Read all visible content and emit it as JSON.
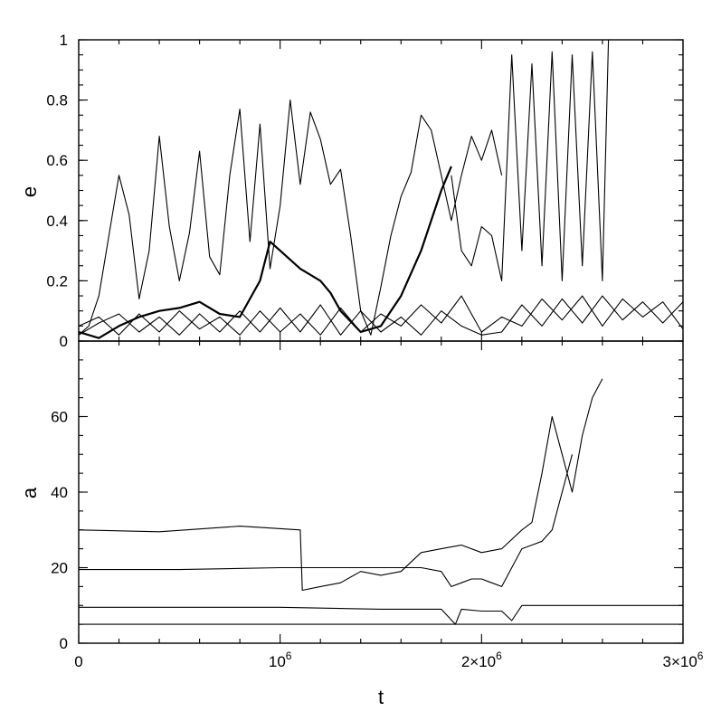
{
  "chart_data": [
    {
      "type": "line",
      "panel": "top",
      "ylabel": "e",
      "xlabel": "",
      "xlim": [
        0,
        3000000
      ],
      "ylim": [
        0,
        1
      ],
      "yticks": [
        0,
        0.2,
        0.4,
        0.6,
        0.8,
        1
      ],
      "ytick_labels": [
        "0",
        "0.2",
        "0.4",
        "0.6",
        "0.8",
        "1"
      ],
      "series": [
        {
          "style": "thin",
          "x": [
            0,
            50000,
            100000,
            150000,
            200000,
            250000,
            300000,
            350000,
            400000,
            450000,
            500000,
            550000,
            600000,
            650000,
            700000,
            750000,
            800000,
            850000,
            900000,
            950000,
            1000000,
            1050000,
            1100000,
            1150000,
            1200000,
            1250000,
            1300000,
            1350000,
            1400000,
            1450000,
            1500000,
            1550000,
            1600000,
            1650000,
            1700000,
            1750000,
            1800000,
            1850000,
            1900000,
            1950000,
            2000000,
            2050000,
            2100000
          ],
          "y": [
            0.02,
            0.05,
            0.15,
            0.35,
            0.55,
            0.42,
            0.14,
            0.3,
            0.68,
            0.38,
            0.2,
            0.36,
            0.63,
            0.28,
            0.22,
            0.55,
            0.77,
            0.33,
            0.72,
            0.24,
            0.45,
            0.8,
            0.52,
            0.76,
            0.67,
            0.52,
            0.57,
            0.35,
            0.1,
            0.02,
            0.18,
            0.35,
            0.48,
            0.56,
            0.75,
            0.7,
            0.55,
            0.4,
            0.55,
            0.68,
            0.6,
            0.7,
            0.55
          ]
        },
        {
          "style": "thick",
          "x": [
            0,
            100000,
            200000,
            300000,
            400000,
            500000,
            600000,
            700000,
            800000,
            900000,
            950000,
            1000000,
            1100000,
            1200000,
            1250000,
            1300000,
            1400000,
            1500000,
            1600000,
            1700000,
            1800000,
            1850000
          ],
          "y": [
            0.03,
            0.01,
            0.05,
            0.08,
            0.1,
            0.11,
            0.13,
            0.09,
            0.08,
            0.2,
            0.33,
            0.3,
            0.24,
            0.2,
            0.16,
            0.1,
            0.03,
            0.05,
            0.15,
            0.3,
            0.5,
            0.58
          ]
        },
        {
          "style": "thin",
          "x": [
            1850000,
            1900000,
            1950000,
            2000000,
            2050000,
            2100000,
            2150000,
            2200000,
            2250000,
            2300000,
            2350000,
            2400000,
            2450000,
            2500000,
            2550000,
            2600000,
            2630000
          ],
          "y": [
            0.55,
            0.3,
            0.25,
            0.38,
            0.35,
            0.2,
            0.95,
            0.3,
            0.92,
            0.25,
            0.96,
            0.2,
            0.95,
            0.25,
            0.96,
            0.2,
            1.0
          ]
        },
        {
          "style": "thin",
          "x": [
            0,
            100000,
            200000,
            300000,
            400000,
            500000,
            600000,
            700000,
            800000,
            900000,
            1000000,
            1100000,
            1200000,
            1300000,
            1400000,
            1500000,
            1600000,
            1700000,
            1800000,
            1900000,
            2000000,
            2100000,
            2200000,
            2300000,
            2400000,
            2500000,
            2600000,
            2700000,
            2800000,
            2900000,
            3000000
          ],
          "y": [
            0.05,
            0.08,
            0.02,
            0.09,
            0.03,
            0.1,
            0.04,
            0.08,
            0.02,
            0.1,
            0.03,
            0.09,
            0.02,
            0.11,
            0.03,
            0.09,
            0.05,
            0.12,
            0.06,
            0.15,
            0.03,
            0.08,
            0.05,
            0.14,
            0.07,
            0.15,
            0.05,
            0.14,
            0.08,
            0.13,
            0.04
          ]
        },
        {
          "style": "thin",
          "x": [
            0,
            100000,
            200000,
            300000,
            400000,
            500000,
            600000,
            700000,
            800000,
            900000,
            1000000,
            1100000,
            1200000,
            1300000,
            1400000,
            1500000,
            1600000,
            1700000,
            1800000,
            1900000,
            2000000,
            2100000,
            2200000,
            2300000,
            2400000,
            2500000,
            2600000,
            2700000,
            2800000,
            2900000,
            3000000
          ],
          "y": [
            0.02,
            0.06,
            0.09,
            0.03,
            0.08,
            0.02,
            0.09,
            0.03,
            0.1,
            0.03,
            0.11,
            0.03,
            0.12,
            0.02,
            0.1,
            0.03,
            0.08,
            0.02,
            0.1,
            0.05,
            0.02,
            0.03,
            0.12,
            0.05,
            0.14,
            0.06,
            0.15,
            0.07,
            0.13,
            0.06,
            0.13
          ]
        }
      ]
    },
    {
      "type": "line",
      "panel": "bottom",
      "ylabel": "a",
      "xlabel": "t",
      "xlim": [
        0,
        3000000
      ],
      "ylim": [
        0,
        80
      ],
      "yticks": [
        0,
        20,
        40,
        60
      ],
      "ytick_labels": [
        "0",
        "20",
        "40",
        "60"
      ],
      "xticks": [
        0,
        1000000,
        2000000,
        3000000
      ],
      "xtick_labels": [
        "0",
        "10^6",
        "2×10^6",
        "3×10^6"
      ],
      "series": [
        {
          "style": "thin",
          "x": [
            0,
            400000,
            800000,
            1100000,
            1110000,
            1200000,
            1300000,
            1400000,
            1500000,
            1600000,
            1700000,
            1800000,
            1900000,
            2000000,
            2100000,
            2200000,
            2250000,
            2300000,
            2350000,
            2400000,
            2450000,
            2500000,
            2550000,
            2600000
          ],
          "y": [
            30,
            29.5,
            31,
            30,
            14,
            15,
            16,
            19,
            18,
            19,
            24,
            25,
            26,
            24,
            25,
            30,
            32,
            45,
            60,
            50,
            40,
            55,
            65,
            70
          ]
        },
        {
          "style": "thin",
          "x": [
            0,
            500000,
            1000000,
            1500000,
            1700000,
            1800000,
            1850000,
            1900000,
            1950000,
            2000000,
            2050000,
            2100000,
            2150000,
            2200000,
            2250000,
            2300000,
            2350000,
            2400000,
            2450000
          ],
          "y": [
            19.5,
            19.5,
            20,
            20,
            20,
            19,
            15,
            16,
            17,
            17,
            16,
            15,
            20,
            25,
            26,
            27,
            30,
            40,
            50
          ]
        },
        {
          "style": "thin",
          "x": [
            0,
            500000,
            1000000,
            1500000,
            1800000,
            1870000,
            1900000,
            2000000,
            2100000,
            2150000,
            2200000,
            2250000,
            3000000
          ],
          "y": [
            9.5,
            9.5,
            9.5,
            9.0,
            9.0,
            5,
            9,
            8.5,
            8.5,
            6,
            10,
            10,
            10
          ]
        },
        {
          "style": "thin",
          "x": [
            0,
            1000000,
            2000000,
            3000000
          ],
          "y": [
            5,
            5,
            5,
            5
          ]
        }
      ]
    }
  ]
}
